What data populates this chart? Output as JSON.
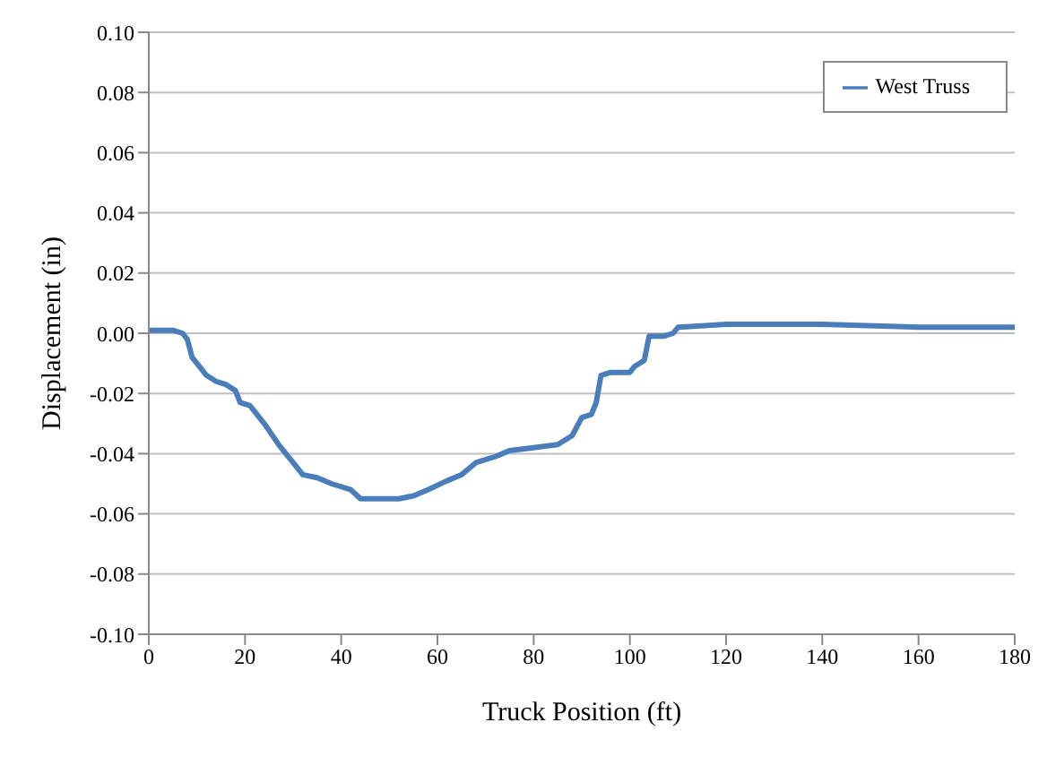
{
  "chart_data": {
    "type": "line",
    "xlabel": "Truck Position (ft)",
    "ylabel": "Displacement (in)",
    "xlim": [
      0,
      180
    ],
    "xticks": [
      0,
      20,
      40,
      60,
      80,
      100,
      120,
      140,
      160,
      180
    ],
    "ylim": [
      -0.1,
      0.1
    ],
    "yticks": [
      {
        "value": -0.1,
        "label": "-0.10"
      },
      {
        "value": -0.08,
        "label": "-0.08"
      },
      {
        "value": -0.06,
        "label": "-0.06"
      },
      {
        "value": -0.04,
        "label": "-0.04"
      },
      {
        "value": -0.02,
        "label": "-0.02"
      },
      {
        "value": 0,
        "label": "0.00"
      },
      {
        "value": 0.02,
        "label": "0.02"
      },
      {
        "value": 0.04,
        "label": "0.04"
      },
      {
        "value": 0.06,
        "label": "0.06"
      },
      {
        "value": 0.08,
        "label": "0.08"
      },
      {
        "value": 0.1,
        "label": "0.10"
      }
    ],
    "grid": "y",
    "legend": "top right",
    "marker": "none",
    "line_style": "solid",
    "x": [
      0,
      5,
      7,
      8,
      9,
      10,
      12,
      14,
      16,
      18,
      19,
      21,
      24,
      27,
      30,
      32,
      35,
      38,
      42,
      44,
      48,
      52,
      55,
      58,
      62,
      65,
      68,
      72,
      75,
      80,
      85,
      88,
      90,
      92,
      93,
      94,
      96,
      100,
      101,
      103,
      104,
      107,
      109,
      110,
      120,
      140,
      160,
      180
    ],
    "series": [
      {
        "name": "West Truss",
        "color": "#4a7ebb",
        "values": [
          0.001,
          0.001,
          0,
          -0.002,
          -0.008,
          -0.01,
          -0.014,
          -0.016,
          -0.017,
          -0.019,
          -0.023,
          -0.024,
          -0.03,
          -0.037,
          -0.043,
          -0.047,
          -0.048,
          -0.05,
          -0.052,
          -0.055,
          -0.055,
          -0.055,
          -0.054,
          -0.052,
          -0.049,
          -0.047,
          -0.043,
          -0.041,
          -0.039,
          -0.038,
          -0.037,
          -0.034,
          -0.028,
          -0.027,
          -0.023,
          -0.014,
          -0.013,
          -0.013,
          -0.011,
          -0.009,
          -0.001,
          -0.001,
          0,
          0.002,
          0.003,
          0.003,
          0.002,
          0.002
        ]
      }
    ]
  }
}
